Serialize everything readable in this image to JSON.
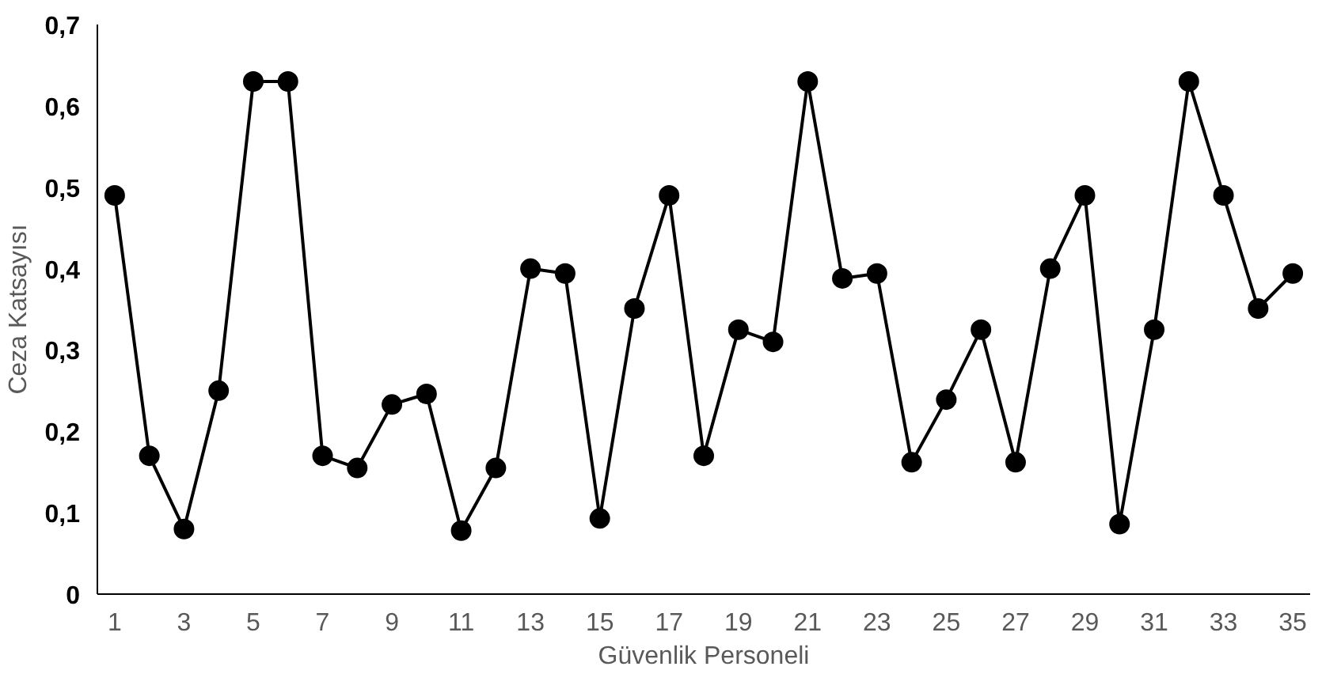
{
  "chart_data": {
    "type": "line",
    "xlabel": "Güvenlik Personeli",
    "ylabel": "Ceza Katsayısı",
    "x": [
      1,
      2,
      3,
      4,
      5,
      6,
      7,
      8,
      9,
      10,
      11,
      12,
      13,
      14,
      15,
      16,
      17,
      18,
      19,
      20,
      21,
      22,
      23,
      24,
      25,
      26,
      27,
      28,
      29,
      30,
      31,
      32,
      33,
      34,
      35
    ],
    "series": [
      {
        "color": "#000000",
        "values": [
          0.49,
          0.17,
          0.08,
          0.25,
          0.63,
          0.63,
          0.17,
          0.155,
          0.233,
          0.246,
          0.078,
          0.155,
          0.4,
          0.394,
          0.093,
          0.351,
          0.49,
          0.17,
          0.325,
          0.31,
          0.63,
          0.388,
          0.394,
          0.162,
          0.239,
          0.325,
          0.162,
          0.4,
          0.49,
          0.086,
          0.325,
          0.63,
          0.49,
          0.351,
          0.394
        ]
      }
    ],
    "xlim": [
      0.5,
      35.5
    ],
    "xticks": [
      1,
      3,
      5,
      7,
      9,
      11,
      13,
      15,
      17,
      19,
      21,
      23,
      25,
      27,
      29,
      31,
      33,
      35
    ],
    "ylim": [
      0,
      0.7
    ],
    "yticks": [
      {
        "value": 0,
        "label": "0"
      },
      {
        "value": 0.1,
        "label": "0,1"
      },
      {
        "value": 0.2,
        "label": "0,2"
      },
      {
        "value": 0.3,
        "label": "0,3"
      },
      {
        "value": 0.4,
        "label": "0,4"
      },
      {
        "value": 0.5,
        "label": "0,5"
      },
      {
        "value": 0.6,
        "label": "0,6"
      },
      {
        "value": 0.7,
        "label": "0,7"
      }
    ],
    "grid": false,
    "marker": "circle",
    "line_style": "solid"
  }
}
